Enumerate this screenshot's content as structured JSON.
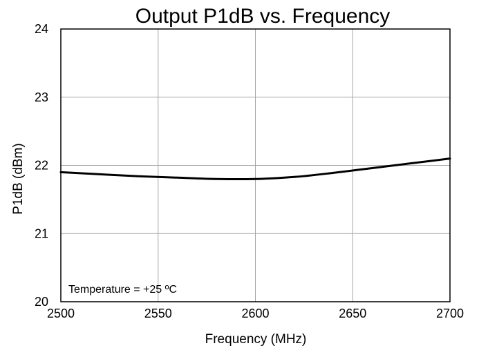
{
  "chart_data": {
    "type": "line",
    "title": "Output P1dB vs. Frequency",
    "xlabel": "Frequency (MHz)",
    "ylabel": "P1dB (dBm)",
    "xlim": [
      2500,
      2700
    ],
    "ylim": [
      20,
      24
    ],
    "xticks": [
      2500,
      2550,
      2600,
      2650,
      2700
    ],
    "yticks": [
      20,
      21,
      22,
      23,
      24
    ],
    "grid": true,
    "annotation": "Temperature = +25 ºC",
    "series": [
      {
        "color": "#000000",
        "x": [
          2500,
          2520,
          2540,
          2560,
          2580,
          2600,
          2620,
          2640,
          2660,
          2680,
          2700
        ],
        "y": [
          21.9,
          21.87,
          21.84,
          21.82,
          21.8,
          21.8,
          21.83,
          21.89,
          21.96,
          22.03,
          22.1
        ]
      }
    ]
  }
}
